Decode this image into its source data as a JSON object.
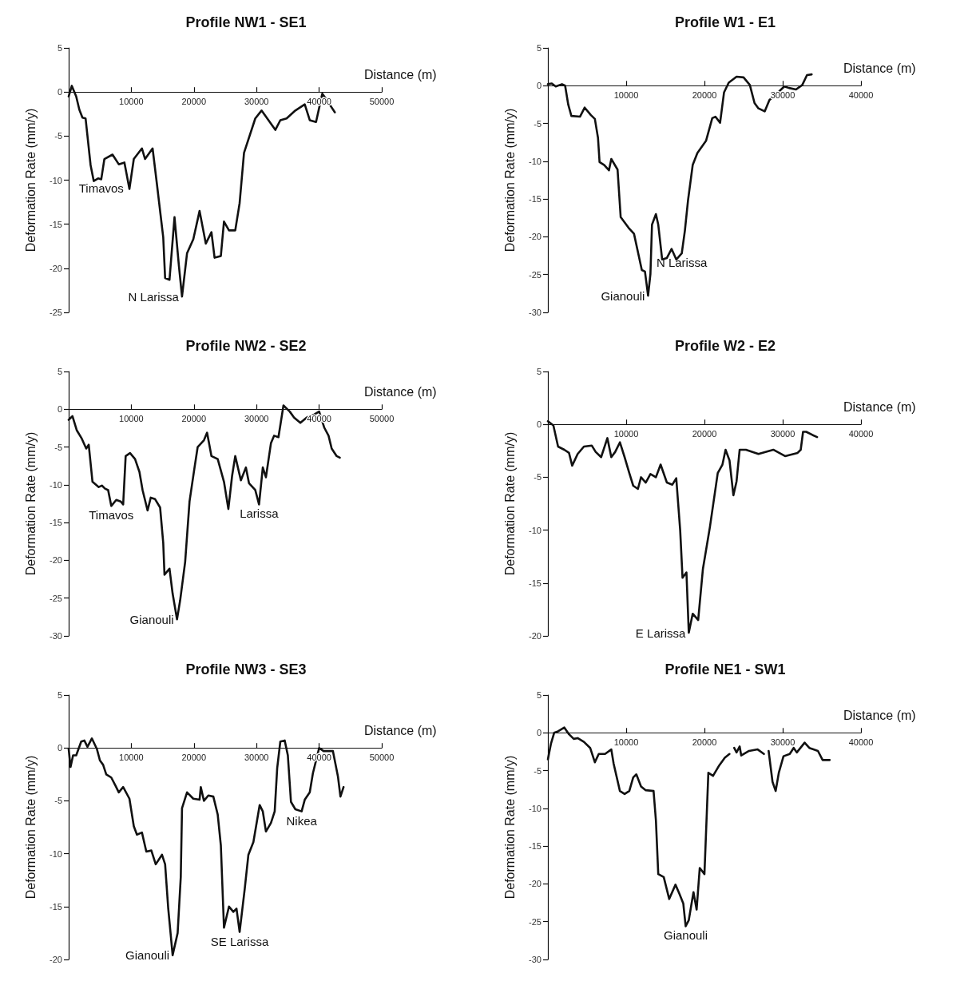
{
  "chart_data": [
    {
      "type": "line",
      "title": "Profile NW1 - SE1",
      "xlabel": "Distance (m)",
      "ylabel": "Deformation Rate (mm/y)",
      "xlim": [
        0,
        50000
      ],
      "ylim": [
        -25,
        5
      ],
      "xticks": [
        10000,
        20000,
        30000,
        40000,
        50000
      ],
      "yticks": [
        -25,
        -20,
        -15,
        -10,
        -5,
        0,
        5
      ],
      "marker": "none",
      "line_style": "solid",
      "series": [
        {
          "color": "#111111",
          "x": [
            0,
            500,
            1200,
            1700,
            2200,
            2700,
            3500,
            4000,
            4700,
            5200,
            5700,
            7000,
            8000,
            8900,
            9700,
            10400,
            11700,
            12200,
            13400,
            14100,
            15100,
            15400,
            16100,
            16900,
            17600,
            18100,
            18900,
            19900,
            20900,
            21900,
            22800,
            23300,
            24300,
            24800,
            25600,
            26600,
            27300,
            28000,
            29800,
            30800,
            33000,
            33800,
            34800,
            36200,
            37700,
            38500,
            39500,
            40500,
            41200,
            42500
          ],
          "values": [
            -0.5,
            0.7,
            -0.5,
            -2,
            -2.9,
            -3,
            -8.3,
            -10.1,
            -9.8,
            -9.9,
            -7.6,
            -7.1,
            -8.2,
            -8,
            -11,
            -7.6,
            -6.4,
            -7.6,
            -6.4,
            -10.5,
            -16.5,
            -21.1,
            -21.3,
            -14.2,
            -19.7,
            -23.2,
            -18.3,
            -16.7,
            -13.5,
            -17.2,
            -15.9,
            -18.8,
            -18.6,
            -14.7,
            -15.7,
            -15.7,
            -12.6,
            -6.9,
            -3,
            -2.1,
            -4.3,
            -3.2,
            -3,
            -2.1,
            -1.4,
            -3.2,
            -3.4,
            -0.2,
            -0.9,
            -2.3
          ]
        }
      ],
      "annotations": [
        {
          "text": "Timavos",
          "x": 5200,
          "y": -9.9
        },
        {
          "text": "N Larissa",
          "x": 18100,
          "y": -23.2
        }
      ]
    },
    {
      "type": "line",
      "title": "Profile W1 - E1",
      "xlabel": "Distance (m)",
      "ylabel": "Deformation Rate (mm/y)",
      "xlim": [
        0,
        40000
      ],
      "ylim": [
        -30,
        5
      ],
      "xticks": [
        10000,
        20000,
        30000,
        40000
      ],
      "yticks": [
        -30,
        -25,
        -20,
        -15,
        -10,
        -5,
        0,
        5
      ],
      "marker": "none",
      "line_style": "solid",
      "series": [
        {
          "color": "#111111",
          "x": [
            0,
            500,
            1000,
            1800,
            2200,
            2600,
            3000,
            4100,
            4700,
            5500,
            6000,
            6400,
            6600,
            7200,
            7800,
            8100,
            8900,
            9300,
            10300,
            11000,
            12000,
            12400,
            12800,
            13100,
            13300,
            13800,
            14100,
            14600,
            15200,
            15800,
            16400,
            17100,
            17500,
            17900,
            18500,
            19100,
            20200,
            21000,
            21400,
            22000,
            22500,
            23100,
            24100,
            25000,
            25800,
            26400,
            26900,
            27700,
            28300,
            29400,
            30200,
            30800,
            31700,
            32500,
            33100,
            33700
          ],
          "values": [
            0.2,
            0.3,
            -0.1,
            0.2,
            0,
            -2.5,
            -4,
            -4.1,
            -2.9,
            -3.9,
            -4.4,
            -6.9,
            -10.1,
            -10.5,
            -11.2,
            -9.7,
            -11.1,
            -17.4,
            -18.8,
            -19.6,
            -24.4,
            -24.6,
            -27.8,
            -24.9,
            -18.4,
            -17,
            -18.4,
            -23,
            -22.8,
            -21.6,
            -23,
            -22.2,
            -19.2,
            -15.2,
            -10.5,
            -8.9,
            -7.3,
            -4.3,
            -4.1,
            -4.9,
            -0.9,
            0.4,
            1.2,
            1.1,
            0.1,
            -2.3,
            -3,
            -3.4,
            -1.9,
            -0.9,
            -0.1,
            -0.3,
            -0.5,
            0.1,
            1.4,
            1.5
          ]
        }
      ],
      "annotations": [
        {
          "text": "N Larissa",
          "x": 17100,
          "y": -22.2
        },
        {
          "text": "Gianouli",
          "x": 12800,
          "y": -27.8
        }
      ]
    },
    {
      "type": "line",
      "title": "Profile NW2 - SE2",
      "xlabel": "Distance (m)",
      "ylabel": "Deformation Rate (mm/y)",
      "xlim": [
        0,
        50000
      ],
      "ylim": [
        -30,
        5
      ],
      "xticks": [
        10000,
        20000,
        30000,
        40000,
        50000
      ],
      "yticks": [
        -30,
        -25,
        -20,
        -15,
        -10,
        -5,
        0,
        5
      ],
      "marker": "none",
      "line_style": "solid",
      "series": [
        {
          "color": "#111111",
          "x": [
            0,
            600,
            1300,
            2100,
            2800,
            3200,
            3800,
            4800,
            5300,
            5800,
            6300,
            6800,
            7600,
            8300,
            8700,
            9100,
            9800,
            10600,
            11300,
            11800,
            12600,
            13100,
            13800,
            14600,
            15100,
            15300,
            16100,
            16600,
            17300,
            17800,
            18600,
            19300,
            20100,
            20600,
            21600,
            22100,
            22800,
            23800,
            24800,
            25500,
            26100,
            26600,
            27500,
            28300,
            28800,
            29800,
            30400,
            31000,
            31500,
            32300,
            32800,
            33500,
            34300,
            35300,
            36000,
            37000,
            38000,
            39200,
            40000,
            40800,
            41500,
            42000,
            42800,
            43300
          ],
          "values": [
            -1.4,
            -0.9,
            -2.8,
            -3.9,
            -5.2,
            -4.7,
            -9.6,
            -10.3,
            -10.1,
            -10.5,
            -10.7,
            -12.8,
            -12,
            -12.2,
            -12.6,
            -6.2,
            -5.8,
            -6.6,
            -8.3,
            -10.7,
            -13.4,
            -11.7,
            -11.9,
            -13,
            -17.7,
            -21.9,
            -21.1,
            -24.4,
            -27.8,
            -25.3,
            -20.2,
            -12.2,
            -7.7,
            -5,
            -4.1,
            -3.1,
            -6.2,
            -6.6,
            -9.6,
            -13.2,
            -8.8,
            -6.2,
            -9.4,
            -7.7,
            -9.8,
            -10.7,
            -12.6,
            -7.7,
            -9,
            -4.5,
            -3.5,
            -3.7,
            0.5,
            -0.3,
            -1.1,
            -1.8,
            -1.1,
            -0.7,
            -0.3,
            -2.4,
            -3.5,
            -5.2,
            -6.2,
            -6.4
          ]
        }
      ],
      "annotations": [
        {
          "text": "Timavos",
          "x": 6800,
          "y": -12.8
        },
        {
          "text": "Gianouli",
          "x": 17300,
          "y": -27.8
        },
        {
          "text": "Larissa",
          "x": 30400,
          "y": -12.6
        }
      ]
    },
    {
      "type": "line",
      "title": "Profile W2 - E2",
      "xlabel": "Distance (m)",
      "ylabel": "Deformation Rate (mm/y)",
      "xlim": [
        0,
        40000
      ],
      "ylim": [
        -20,
        5
      ],
      "xticks": [
        10000,
        20000,
        30000,
        40000
      ],
      "yticks": [
        -20,
        -15,
        -10,
        -5,
        0,
        5
      ],
      "marker": "none",
      "line_style": "solid",
      "series": [
        {
          "color": "#111111",
          "x": [
            0,
            700,
            1300,
            2100,
            2700,
            3100,
            3800,
            4600,
            5600,
            6100,
            6800,
            7600,
            8100,
            8600,
            9200,
            9800,
            10400,
            10900,
            11500,
            11900,
            12500,
            13100,
            13800,
            14400,
            15200,
            15900,
            16400,
            16900,
            17200,
            17700,
            18000,
            18500,
            19200,
            19800,
            20700,
            21700,
            22300,
            22700,
            23200,
            23700,
            24100,
            24500,
            25300,
            26900,
            28800,
            30300,
            31900,
            32300,
            32600,
            33000,
            33800,
            34400
          ],
          "values": [
            0.3,
            -0.1,
            -2.1,
            -2.4,
            -2.7,
            -3.9,
            -2.8,
            -2.1,
            -2,
            -2.6,
            -3.1,
            -1.3,
            -3.1,
            -2.6,
            -1.7,
            -3.1,
            -4.6,
            -5.8,
            -6.1,
            -5,
            -5.5,
            -4.7,
            -5,
            -3.8,
            -5.5,
            -5.7,
            -5.1,
            -10,
            -14.5,
            -14,
            -19.7,
            -17.9,
            -18.5,
            -13.7,
            -9.7,
            -4.6,
            -3.8,
            -2.4,
            -3.4,
            -6.7,
            -5.4,
            -2.4,
            -2.4,
            -2.8,
            -2.4,
            -3,
            -2.7,
            -2.4,
            -0.7,
            -0.7,
            -1,
            -1.2
          ]
        }
      ],
      "annotations": [
        {
          "text": "E Larissa",
          "x": 18000,
          "y": -19.7
        }
      ]
    },
    {
      "type": "line",
      "title": "Profile NW3 - SE3",
      "xlabel": "Distance (m)",
      "ylabel": "Deformation Rate (mm/y)",
      "xlim": [
        0,
        50000
      ],
      "ylim": [
        -20,
        5
      ],
      "xticks": [
        10000,
        20000,
        30000,
        40000,
        50000
      ],
      "yticks": [
        -20,
        -15,
        -10,
        -5,
        0,
        5
      ],
      "marker": "none",
      "line_style": "solid",
      "series": [
        {
          "color": "#111111",
          "x": [
            0,
            300,
            700,
            1200,
            2000,
            2500,
            3000,
            3700,
            4500,
            5000,
            5500,
            6000,
            6800,
            7500,
            8000,
            8700,
            9700,
            10400,
            10900,
            11700,
            12400,
            13200,
            13900,
            14900,
            15400,
            15900,
            16600,
            17400,
            17900,
            18100,
            18900,
            19900,
            20900,
            21100,
            21600,
            22300,
            23100,
            23800,
            24300,
            24800,
            25600,
            26300,
            26800,
            27300,
            28100,
            28700,
            29500,
            30500,
            31000,
            31500,
            32300,
            32900,
            33300,
            33800,
            34500,
            35000,
            35500,
            36200,
            37200,
            37700,
            38500,
            39000,
            40000,
            40700,
            42200,
            43000,
            43400,
            43900
          ],
          "values": [
            -0.1,
            -1.8,
            -0.7,
            -0.7,
            0.6,
            0.7,
            0.1,
            0.9,
            -0.1,
            -1.2,
            -1.6,
            -2.5,
            -2.8,
            -3.6,
            -4.2,
            -3.7,
            -4.8,
            -7.4,
            -8.2,
            -8,
            -9.8,
            -9.7,
            -11,
            -10.1,
            -11,
            -15.2,
            -19.6,
            -17.5,
            -12.2,
            -5.7,
            -4.2,
            -4.8,
            -4.9,
            -3.7,
            -5,
            -4.5,
            -4.6,
            -6.3,
            -9.2,
            -17,
            -15,
            -15.5,
            -15.2,
            -17.4,
            -13.4,
            -10.1,
            -8.9,
            -5.4,
            -6,
            -7.9,
            -7.1,
            -6,
            -1.9,
            0.6,
            0.7,
            -0.7,
            -5.1,
            -5.8,
            -6,
            -4.9,
            -4.2,
            -2.4,
            0,
            -0.3,
            -0.3,
            -2.7,
            -4.6,
            -3.7
          ]
        }
      ],
      "annotations": [
        {
          "text": "Nikea",
          "x": 37200,
          "y": -6
        },
        {
          "text": "SE Larissa",
          "x": 27300,
          "y": -17.4
        },
        {
          "text": "Gianouli",
          "x": 16600,
          "y": -19.6
        }
      ]
    },
    {
      "type": "line",
      "title": "Profile NE1 - SW1",
      "xlabel": "Distance (m)",
      "ylabel": "Deformation Rate (mm/y)",
      "xlim": [
        0,
        40000
      ],
      "ylim": [
        -30,
        5
      ],
      "xticks": [
        10000,
        20000,
        30000,
        40000
      ],
      "yticks": [
        -30,
        -25,
        -20,
        -15,
        -10,
        -5,
        0,
        5
      ],
      "marker": "none",
      "line_style": "solid",
      "series": [
        {
          "color": "#111111",
          "x": [
            0,
            400,
            800,
            1300,
            2100,
            2700,
            3300,
            3800,
            4600,
            5400,
            6000,
            6500,
            7300,
            8100,
            8400,
            9200,
            9800,
            10400,
            10900,
            11300,
            11900,
            12500,
            13500,
            13800,
            14100,
            14800,
            15500,
            16300,
            16800,
            17300,
            17600,
            18000,
            18600,
            19000,
            19400,
            20000,
            20500,
            21100,
            21900,
            22600,
            23200,
            23500,
            23800,
            24100,
            24500,
            24700,
            25700,
            26800,
            27600,
            27900,
            28200,
            28700,
            29100,
            29500,
            30100,
            30900,
            31400,
            31800,
            32800,
            33400,
            34500,
            35100,
            36000
          ],
          "values": [
            -3.5,
            -1.4,
            0,
            0.2,
            0.7,
            -0.2,
            -0.8,
            -0.7,
            -1.2,
            -2,
            -3.9,
            -2.8,
            -2.8,
            -2.2,
            -4.1,
            -7.7,
            -8.1,
            -7.7,
            -5.9,
            -5.5,
            -7.1,
            -7.6,
            -7.7,
            -11.6,
            -18.7,
            -19.1,
            -22,
            -20.1,
            -21.3,
            -22.6,
            -25.6,
            -24.8,
            -21.1,
            -23.4,
            -17.9,
            -18.7,
            -5.3,
            -5.7,
            -4.3,
            -3.3,
            -2.8,
            null,
            -2,
            -2.6,
            -1.8,
            -3,
            -2.4,
            -2.2,
            -2.8,
            null,
            -2.4,
            -6.5,
            -7.7,
            -5.3,
            -3.1,
            -2.8,
            -2,
            -2.6,
            -1.3,
            -2,
            -2.4,
            -3.6,
            -3.6
          ]
        }
      ],
      "annotations": [
        {
          "text": "Gianouli",
          "x": 17600,
          "y": -25.6
        }
      ]
    }
  ]
}
